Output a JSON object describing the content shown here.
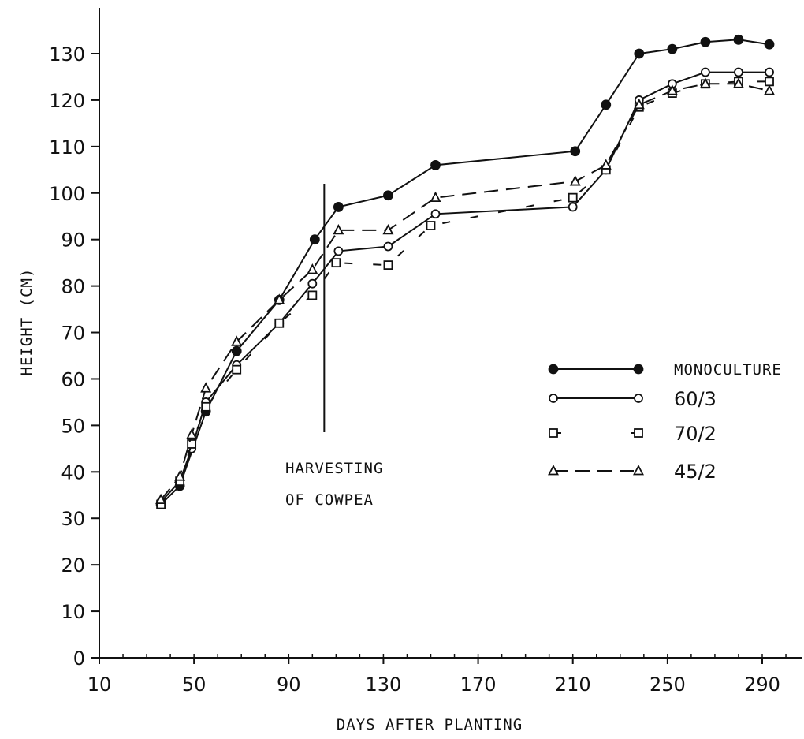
{
  "chart_data": {
    "type": "line",
    "title": "",
    "xlabel": "DAYS AFTER PLANTING",
    "ylabel": "HEIGHT (CM)",
    "xlim": [
      0,
      300
    ],
    "ylim": [
      0,
      135
    ],
    "xticks": [
      10,
      50,
      90,
      130,
      170,
      210,
      250,
      290
    ],
    "yticks": [
      0,
      10,
      20,
      30,
      40,
      50,
      60,
      70,
      80,
      90,
      100,
      110,
      120,
      130
    ],
    "grid": false,
    "legend_position": "right",
    "annotation": {
      "lines": [
        "HARVESTING",
        "OF COWPEA"
      ],
      "x": 105,
      "y_range": [
        0,
        102
      ]
    },
    "series": [
      {
        "name": "MONOCULTURE",
        "marker": "filled-circle",
        "dash": "solid",
        "x": [
          36,
          44,
          55,
          68,
          86,
          101,
          111,
          132,
          152,
          211,
          224,
          238,
          252,
          266,
          280,
          293
        ],
        "y": [
          33,
          37,
          53,
          66,
          77,
          90,
          97,
          99.5,
          106,
          109,
          119,
          130,
          131,
          132.5,
          133,
          132
        ]
      },
      {
        "name": "60/3",
        "marker": "open-circle",
        "dash": "solid",
        "x": [
          36,
          44,
          49,
          55,
          68,
          86,
          100,
          111,
          132,
          152,
          210,
          224,
          238,
          252,
          266,
          280,
          293
        ],
        "y": [
          33.5,
          38,
          45,
          55,
          63,
          72,
          80.5,
          87.5,
          88.5,
          95.5,
          97,
          105,
          120,
          123.5,
          126,
          126,
          126
        ]
      },
      {
        "name": "70/2",
        "marker": "open-square",
        "dash": "broken",
        "x": [
          36,
          44,
          49,
          55,
          68,
          86,
          100,
          110,
          132,
          150,
          210,
          224,
          238,
          252,
          266,
          280,
          293
        ],
        "y": [
          33,
          38,
          46,
          54,
          62,
          72,
          78,
          85,
          84.5,
          93,
          99,
          105,
          118.5,
          121.5,
          123.5,
          124,
          124
        ]
      },
      {
        "name": "45/2",
        "marker": "open-triangle",
        "dash": "dashed",
        "x": [
          36,
          44,
          49,
          55,
          68,
          86,
          100,
          111,
          132,
          152,
          211,
          224,
          238,
          252,
          266,
          280,
          293
        ],
        "y": [
          34,
          39,
          48,
          58,
          68,
          77,
          83.5,
          92,
          92,
          99,
          102.5,
          106,
          119,
          122,
          123.5,
          123.5,
          122
        ]
      }
    ]
  }
}
